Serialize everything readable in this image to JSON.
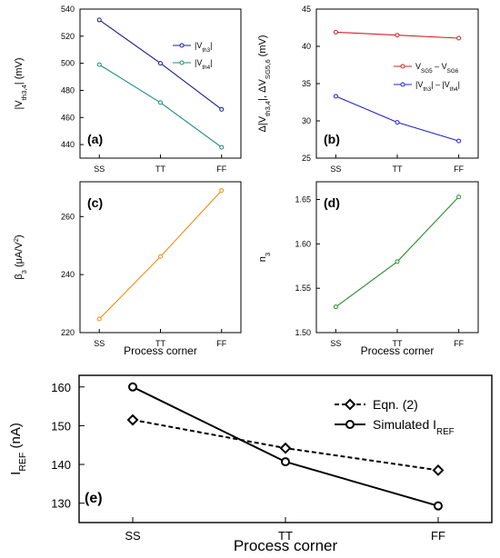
{
  "chart_data": [
    {
      "panel_label": "(a)",
      "type": "line",
      "categories": [
        "SS",
        "TT",
        "FF"
      ],
      "ylabel": [
        {
          "t": "|V"
        },
        {
          "t": "th3,4",
          "sub": true
        },
        {
          "t": "| (mV)"
        }
      ],
      "ylim": [
        430,
        540
      ],
      "yticks": [
        440,
        460,
        480,
        500,
        520,
        540
      ],
      "series": [
        {
          "color": "#1c1c8a",
          "values": [
            532,
            500,
            466
          ],
          "legend": [
            {
              "t": "|V"
            },
            {
              "t": "th3",
              "sub": true
            },
            {
              "t": "|"
            }
          ]
        },
        {
          "color": "#1a8c7c",
          "values": [
            499,
            471,
            438
          ],
          "legend": [
            {
              "t": "|V"
            },
            {
              "t": "th4",
              "sub": true
            },
            {
              "t": "|"
            }
          ]
        }
      ]
    },
    {
      "panel_label": "(b)",
      "type": "line",
      "categories": [
        "SS",
        "TT",
        "FF"
      ],
      "ylabel": [
        {
          "t": "Δ|V"
        },
        {
          "t": "th3,4",
          "sub": true
        },
        {
          "t": "|, ΔV"
        },
        {
          "t": "SG5,6",
          "sub": true
        },
        {
          "t": " (mV)"
        }
      ],
      "ylim": [
        25,
        45
      ],
      "yticks": [
        25,
        30,
        35,
        40,
        45
      ],
      "series": [
        {
          "color": "#d42020",
          "values": [
            41.9,
            41.5,
            41.1
          ],
          "legend": [
            {
              "t": "V"
            },
            {
              "t": "SG5",
              "sub": true
            },
            {
              "t": " – V"
            },
            {
              "t": "SG6",
              "sub": true
            }
          ]
        },
        {
          "color": "#2020d4",
          "values": [
            33.3,
            29.8,
            27.3
          ],
          "legend": [
            {
              "t": "|V"
            },
            {
              "t": "th3",
              "sub": true
            },
            {
              "t": "| – |V"
            },
            {
              "t": "th4",
              "sub": true
            },
            {
              "t": "|"
            }
          ]
        }
      ]
    },
    {
      "panel_label": "(c)",
      "type": "line",
      "categories": [
        "SS",
        "TT",
        "FF"
      ],
      "xlabel": "Process corner",
      "ylabel": [
        {
          "t": "β"
        },
        {
          "t": "3",
          "sub": true
        },
        {
          "t": " (μA/V"
        },
        {
          "t": "2",
          "sup": true
        },
        {
          "t": ")"
        }
      ],
      "ylim": [
        220,
        272
      ],
      "yticks": [
        220,
        240,
        260
      ],
      "series": [
        {
          "color": "#f08c10",
          "values": [
            224.7,
            246.2,
            269
          ]
        }
      ]
    },
    {
      "panel_label": "(d)",
      "type": "line",
      "categories": [
        "SS",
        "TT",
        "FF"
      ],
      "xlabel": "Process corner",
      "ylabel": [
        {
          "t": "n"
        },
        {
          "t": "3",
          "sub": true
        }
      ],
      "ylim": [
        1.5,
        1.67
      ],
      "yticks": [
        1.5,
        1.55,
        1.6,
        1.65
      ],
      "series": [
        {
          "color": "#2a8c2a",
          "values": [
            1.529,
            1.58,
            1.653
          ]
        }
      ]
    },
    {
      "panel_label": "(e)",
      "type": "line",
      "categories": [
        "SS",
        "TT",
        "FF"
      ],
      "xlabel": "Process corner",
      "ylabel": [
        {
          "t": "I"
        },
        {
          "t": "REF",
          "sub": true
        },
        {
          "t": " (nA)"
        }
      ],
      "ylim": [
        125,
        163
      ],
      "yticks": [
        130,
        140,
        150,
        160
      ],
      "series": [
        {
          "color": "#000000",
          "values": [
            151.5,
            144.2,
            138.5
          ],
          "dashed": true,
          "marker": "diamond",
          "legend": [
            {
              "t": "Eqn. (2)"
            }
          ]
        },
        {
          "color": "#000000",
          "values": [
            160,
            140.7,
            129.3
          ],
          "marker": "circle",
          "legend": [
            {
              "t": "Simulated I"
            },
            {
              "t": "REF",
              "sub": true
            }
          ]
        }
      ]
    }
  ]
}
